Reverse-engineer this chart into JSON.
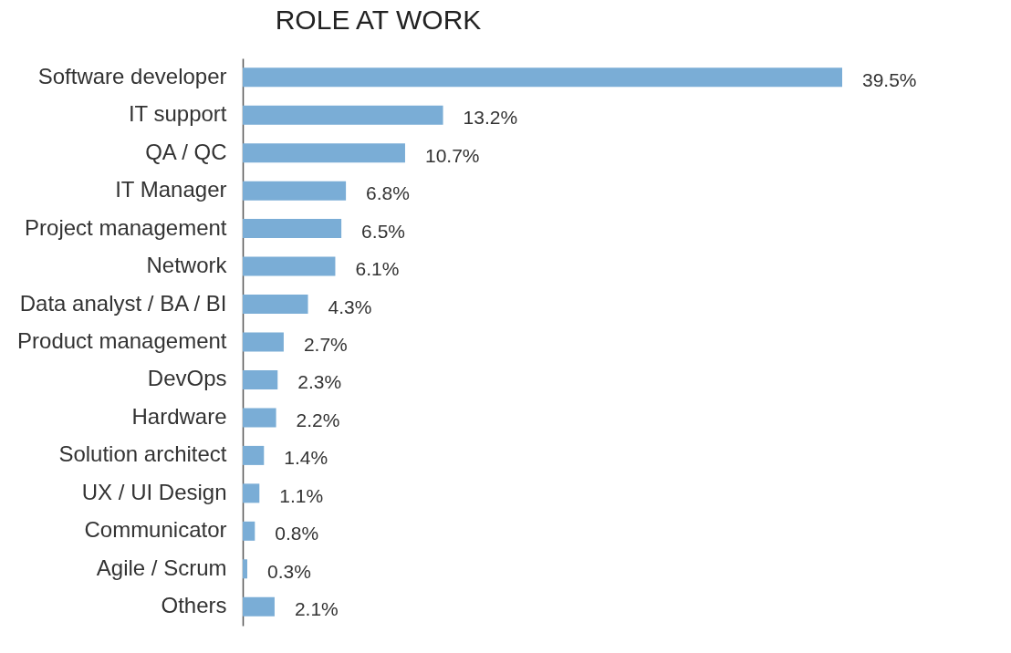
{
  "chart_data": {
    "type": "bar",
    "orientation": "horizontal",
    "title": "ROLE AT WORK",
    "categories": [
      "Software developer",
      "IT support",
      "QA / QC",
      "IT Manager",
      "Project management",
      "Network",
      "Data analyst / BA / BI",
      "Product management",
      "DevOps",
      "Hardware",
      "Solution architect",
      "UX / UI Design",
      "Communicator",
      "Agile / Scrum",
      "Others"
    ],
    "values": [
      39.5,
      13.2,
      10.7,
      6.8,
      6.5,
      6.1,
      4.3,
      2.7,
      2.3,
      2.2,
      1.4,
      1.1,
      0.8,
      0.3,
      2.1
    ],
    "value_labels": [
      "39.5%",
      "13.2%",
      "10.7%",
      "6.8%",
      "6.5%",
      "6.1%",
      "4.3%",
      "2.7%",
      "2.3%",
      "2.2%",
      "1.4%",
      "1.1%",
      "0.8%",
      "0.3%",
      "2.1%"
    ],
    "color": "#7aadd6",
    "tick_labels": "y",
    "grid": false
  }
}
